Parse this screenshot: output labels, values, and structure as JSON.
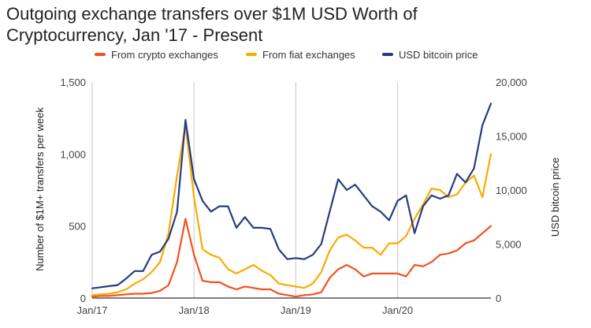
{
  "chart_data": {
    "type": "line",
    "title": "Outgoing exchange transfers over $1M USD Worth of Cryptocurrency, Jan '17 - Present",
    "ylabel": "Number of $1M+ transfers per week",
    "y2label": "USD bitcoin price",
    "ylim": [
      0,
      1500
    ],
    "y2lim": [
      0,
      20000
    ],
    "yticks": [
      "0",
      "500",
      "1,000",
      "1,500"
    ],
    "y2ticks": [
      "0",
      "5,000",
      "10,000",
      "15,000",
      "20,000"
    ],
    "xticks": [
      "Jan/17",
      "Jan/18",
      "Jan/19",
      "Jan/20"
    ],
    "legend_position": "top",
    "grid": "vertical at year starts",
    "x": [
      "2017-01",
      "2017-02",
      "2017-03",
      "2017-04",
      "2017-05",
      "2017-06",
      "2017-07",
      "2017-08",
      "2017-09",
      "2017-10",
      "2017-11",
      "2017-12",
      "2018-01",
      "2018-02",
      "2018-03",
      "2018-04",
      "2018-05",
      "2018-06",
      "2018-07",
      "2018-08",
      "2018-09",
      "2018-10",
      "2018-11",
      "2018-12",
      "2019-01",
      "2019-02",
      "2019-03",
      "2019-04",
      "2019-05",
      "2019-06",
      "2019-07",
      "2019-08",
      "2019-09",
      "2019-10",
      "2019-11",
      "2019-12",
      "2020-01",
      "2020-02",
      "2020-03",
      "2020-04",
      "2020-05",
      "2020-06",
      "2020-07",
      "2020-08",
      "2020-09",
      "2020-10",
      "2020-11",
      "2020-12"
    ],
    "series": [
      {
        "name": "From crypto exchanges",
        "axis": "left",
        "color": "#f4511e",
        "values": [
          10,
          15,
          15,
          20,
          25,
          30,
          30,
          35,
          50,
          90,
          250,
          550,
          300,
          120,
          110,
          110,
          80,
          60,
          80,
          70,
          60,
          60,
          30,
          20,
          10,
          20,
          25,
          40,
          140,
          200,
          230,
          200,
          150,
          170,
          170,
          170,
          170,
          150,
          230,
          220,
          250,
          300,
          310,
          330,
          380,
          400,
          450,
          500
        ]
      },
      {
        "name": "From fiat exchanges",
        "axis": "left",
        "color": "#f9ab00",
        "values": [
          20,
          25,
          30,
          40,
          60,
          100,
          130,
          180,
          250,
          450,
          850,
          1200,
          700,
          340,
          300,
          280,
          200,
          170,
          200,
          230,
          190,
          160,
          100,
          90,
          80,
          70,
          100,
          180,
          330,
          420,
          440,
          400,
          350,
          350,
          300,
          380,
          380,
          430,
          550,
          650,
          760,
          750,
          700,
          720,
          800,
          850,
          700,
          1000
        ]
      },
      {
        "name": "USD bitcoin price",
        "axis": "right",
        "color": "#283a82",
        "values": [
          900,
          1000,
          1100,
          1200,
          1800,
          2500,
          2500,
          4000,
          4300,
          5500,
          8000,
          16500,
          11000,
          9000,
          8000,
          8500,
          8500,
          6500,
          7500,
          6500,
          6500,
          6400,
          4500,
          3600,
          3700,
          3600,
          4000,
          5000,
          8000,
          11000,
          10000,
          10500,
          9500,
          8500,
          8000,
          7200,
          9000,
          9500,
          6000,
          8500,
          9500,
          9200,
          9500,
          11500,
          10700,
          12000,
          16000,
          18000
        ]
      }
    ]
  }
}
